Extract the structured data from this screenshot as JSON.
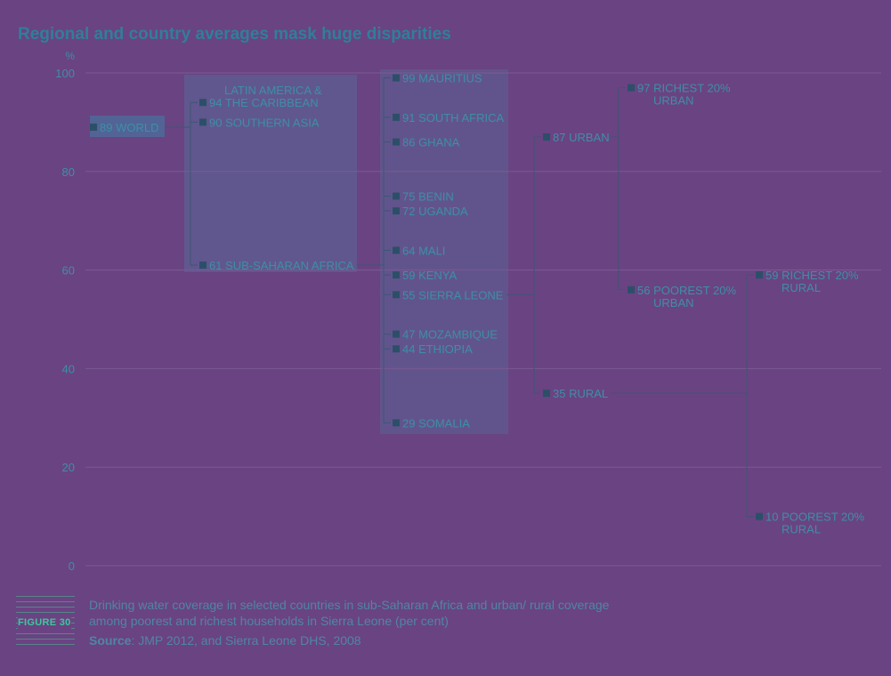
{
  "title": "Regional and country averages mask huge disparities",
  "figure_label": "FIGURE 30",
  "caption": "Drinking water coverage in selected countries in sub-Saharan Africa and urban/ rural coverage among poorest and richest households in Sierra Leone (per cent)",
  "source_label": "Source",
  "source_text": ": JMP 2012, and Sierra Leone DHS, 2008",
  "colors": {
    "background": "#6a4382",
    "title": "#2f7f99",
    "text": "#3d8fa5",
    "marker": "#2c4f68",
    "connector": "#3b5773",
    "highlight": "#4aa7a8"
  },
  "chart_data": {
    "type": "scatter",
    "ylabel": "%",
    "ylim": [
      0,
      100
    ],
    "yticks": [
      0,
      20,
      40,
      60,
      80,
      100
    ],
    "grid": true,
    "columns": [
      {
        "points": [
          {
            "value": 89,
            "label": "WORLD"
          }
        ]
      },
      {
        "points": [
          {
            "value": 94,
            "label": "LATIN AMERICA & THE CARIBBEAN"
          },
          {
            "value": 90,
            "label": "SOUTHERN ASIA"
          },
          {
            "value": 61,
            "label": "SUB-SAHARAN AFRICA"
          }
        ]
      },
      {
        "points": [
          {
            "value": 99,
            "label": "MAURITIUS"
          },
          {
            "value": 91,
            "label": "SOUTH AFRICA"
          },
          {
            "value": 86,
            "label": "GHANA"
          },
          {
            "value": 75,
            "label": "BENIN"
          },
          {
            "value": 72,
            "label": "UGANDA"
          },
          {
            "value": 64,
            "label": "MALI"
          },
          {
            "value": 59,
            "label": "KENYA"
          },
          {
            "value": 55,
            "label": "SIERRA LEONE"
          },
          {
            "value": 47,
            "label": "MOZAMBIQUE"
          },
          {
            "value": 44,
            "label": "ETHIOPIA"
          },
          {
            "value": 29,
            "label": "SOMALIA"
          }
        ]
      },
      {
        "points": [
          {
            "value": 87,
            "label": "URBAN"
          },
          {
            "value": 35,
            "label": "RURAL"
          }
        ]
      },
      {
        "points": [
          {
            "value": 97,
            "label": "RICHEST 20% URBAN"
          },
          {
            "value": 56,
            "label": "POOREST 20% URBAN"
          }
        ]
      },
      {
        "points": [
          {
            "value": 59,
            "label": "RICHEST 20% RURAL"
          },
          {
            "value": 10,
            "label": "POOREST 20% RURAL"
          }
        ]
      }
    ]
  }
}
